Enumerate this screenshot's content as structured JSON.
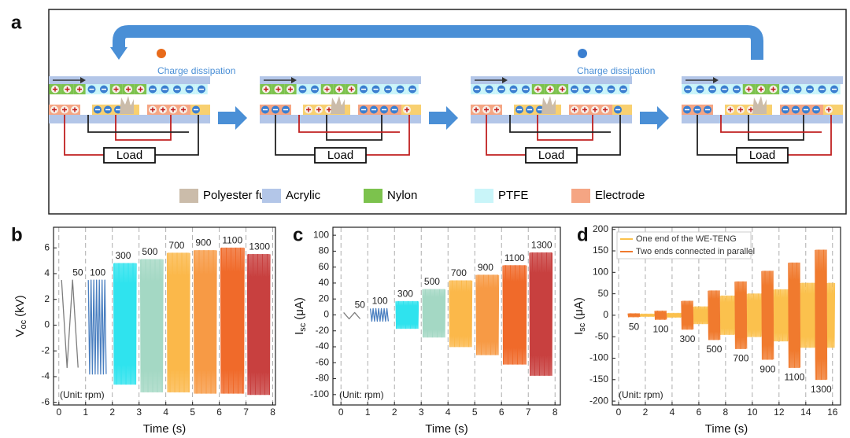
{
  "panel_labels": [
    "a",
    "b",
    "c",
    "d"
  ],
  "diagram": {
    "annotations": [
      "Charge dissipation",
      "Charge dissipation"
    ],
    "load_labels": [
      "Load",
      "Load",
      "Load",
      "Load"
    ],
    "legend": [
      {
        "name": "Polyester fur",
        "color": "#cbbcaa"
      },
      {
        "name": "Acrylic",
        "color": "#b3c6e8"
      },
      {
        "name": "Nylon",
        "color": "#7cc24d"
      },
      {
        "name": "PTFE",
        "color": "#c9f5f9"
      },
      {
        "name": "Electrode",
        "color": "#f5a583"
      }
    ]
  },
  "chart_data": [
    {
      "type": "burst",
      "ylabel": {
        "symbol": "V",
        "sub": "oc",
        "unit": "(kV)"
      },
      "xlabel": "Time (s)",
      "annotation": "(Unit: rpm)",
      "xlim": [
        -0.2,
        8.1
      ],
      "ylim": [
        -6.2,
        7.6
      ],
      "xticks": [
        0,
        1,
        2,
        3,
        4,
        5,
        6,
        7,
        8
      ],
      "yticks": [
        -6,
        -4,
        -2,
        0,
        2,
        4,
        6
      ],
      "xgrid": "dashed",
      "series": [
        {
          "name": "50",
          "color": "#7d7d7d",
          "x": [
            0.1,
            0.9
          ],
          "max": 3.5,
          "min": -3.3
        },
        {
          "name": "100",
          "color": "#4a7fc0",
          "x": [
            1.1,
            1.8
          ],
          "max": 3.5,
          "min": -3.8
        },
        {
          "name": "300",
          "color": "#2fe3ee",
          "x": [
            2.05,
            2.9
          ],
          "max": 4.8,
          "min": -4.6
        },
        {
          "name": "500",
          "color": "#a4d8c4",
          "x": [
            3.05,
            3.9
          ],
          "max": 5.1,
          "min": -5.2
        },
        {
          "name": "700",
          "color": "#fbb84a",
          "x": [
            4.05,
            4.9
          ],
          "max": 5.6,
          "min": -5.2
        },
        {
          "name": "900",
          "color": "#f79a45",
          "x": [
            5.05,
            5.9
          ],
          "max": 5.8,
          "min": -5.3
        },
        {
          "name": "1100",
          "color": "#f06a2a",
          "x": [
            6.05,
            6.95
          ],
          "max": 6.0,
          "min": -5.3
        },
        {
          "name": "1300",
          "color": "#c8403f",
          "x": [
            7.05,
            7.9
          ],
          "max": 5.5,
          "min": -5.4
        }
      ]
    },
    {
      "type": "burst",
      "ylabel": {
        "symbol": "I",
        "sub": "sc",
        "unit": "(μA)"
      },
      "xlabel": "Time (s)",
      "annotation": "(Unit: rpm)",
      "xlim": [
        -0.3,
        8.2
      ],
      "ylim": [
        -113,
        110
      ],
      "xticks": [
        0,
        1,
        2,
        3,
        4,
        5,
        6,
        7,
        8
      ],
      "yticks": [
        -100,
        -80,
        -60,
        -40,
        -20,
        0,
        20,
        40,
        60,
        80,
        100
      ],
      "xgrid": "dashed",
      "series": [
        {
          "name": "50",
          "color": "#7d7d7d",
          "x": [
            0.1,
            0.9
          ],
          "max": 3,
          "min": -5
        },
        {
          "name": "100",
          "color": "#4a7fc0",
          "x": [
            1.1,
            1.8
          ],
          "max": 8,
          "min": -8
        },
        {
          "name": "300",
          "color": "#2fe3ee",
          "x": [
            2.05,
            2.9
          ],
          "max": 17,
          "min": -17
        },
        {
          "name": "500",
          "color": "#a4d8c4",
          "x": [
            3.05,
            3.9
          ],
          "max": 32,
          "min": -28
        },
        {
          "name": "700",
          "color": "#fbb84a",
          "x": [
            4.05,
            4.9
          ],
          "max": 43,
          "min": -40
        },
        {
          "name": "900",
          "color": "#f79a45",
          "x": [
            5.05,
            5.9
          ],
          "max": 50,
          "min": -50
        },
        {
          "name": "1100",
          "color": "#f06a2a",
          "x": [
            6.05,
            6.95
          ],
          "max": 62,
          "min": -62
        },
        {
          "name": "1300",
          "color": "#c8403f",
          "x": [
            7.05,
            7.9
          ],
          "max": 78,
          "min": -76
        }
      ]
    },
    {
      "type": "burst",
      "ylabel": {
        "symbol": "I",
        "sub": "sc",
        "unit": "(μA)"
      },
      "xlabel": "Time (s)",
      "annotation": "(Unit: rpm)",
      "xlim": [
        -0.47,
        16.6
      ],
      "ylim": [
        -209,
        205
      ],
      "xticks": [
        0,
        2,
        4,
        6,
        8,
        10,
        12,
        14,
        16
      ],
      "yticks": [
        -200,
        -150,
        -100,
        -50,
        0,
        50,
        100,
        150,
        200
      ],
      "xgrid": "dashed",
      "legend": "upper left",
      "categories": [
        "50",
        "100",
        "300",
        "500",
        "700",
        "900",
        "1100",
        "1300"
      ],
      "series": [
        {
          "name": "One end of the WE-TENG",
          "color": "#fbc14d",
          "bursts": [
            {
              "x": [
                1.6,
                2.7
              ],
              "max": 3,
              "min": -3
            },
            {
              "x": [
                3.6,
                4.7
              ],
              "max": 5,
              "min": -5
            },
            {
              "x": [
                5.6,
                6.7
              ],
              "max": 20,
              "min": -20
            },
            {
              "x": [
                7.6,
                8.7
              ],
              "max": 45,
              "min": -45
            },
            {
              "x": [
                9.6,
                10.7
              ],
              "max": 50,
              "min": -50
            },
            {
              "x": [
                11.6,
                12.7
              ],
              "max": 60,
              "min": -60
            },
            {
              "x": [
                13.6,
                14.7
              ],
              "max": 75,
              "min": -75
            },
            {
              "x": [
                15.6,
                16.2
              ],
              "max": 75,
              "min": -75
            }
          ]
        },
        {
          "name": "Two ends connected in parallel",
          "color": "#f07a2e",
          "bursts": [
            {
              "x": [
                0.7,
                1.6
              ],
              "max": 4,
              "min": -4
            },
            {
              "x": [
                2.7,
                3.6
              ],
              "max": 10,
              "min": -10
            },
            {
              "x": [
                4.7,
                5.6
              ],
              "max": 33,
              "min": -33
            },
            {
              "x": [
                6.7,
                7.6
              ],
              "max": 57,
              "min": -57
            },
            {
              "x": [
                8.7,
                9.6
              ],
              "max": 78,
              "min": -78
            },
            {
              "x": [
                10.7,
                11.6
              ],
              "max": 103,
              "min": -103
            },
            {
              "x": [
                12.7,
                13.6
              ],
              "max": 122,
              "min": -122
            },
            {
              "x": [
                14.7,
                15.6
              ],
              "max": 152,
              "min": -150
            }
          ]
        }
      ]
    }
  ]
}
